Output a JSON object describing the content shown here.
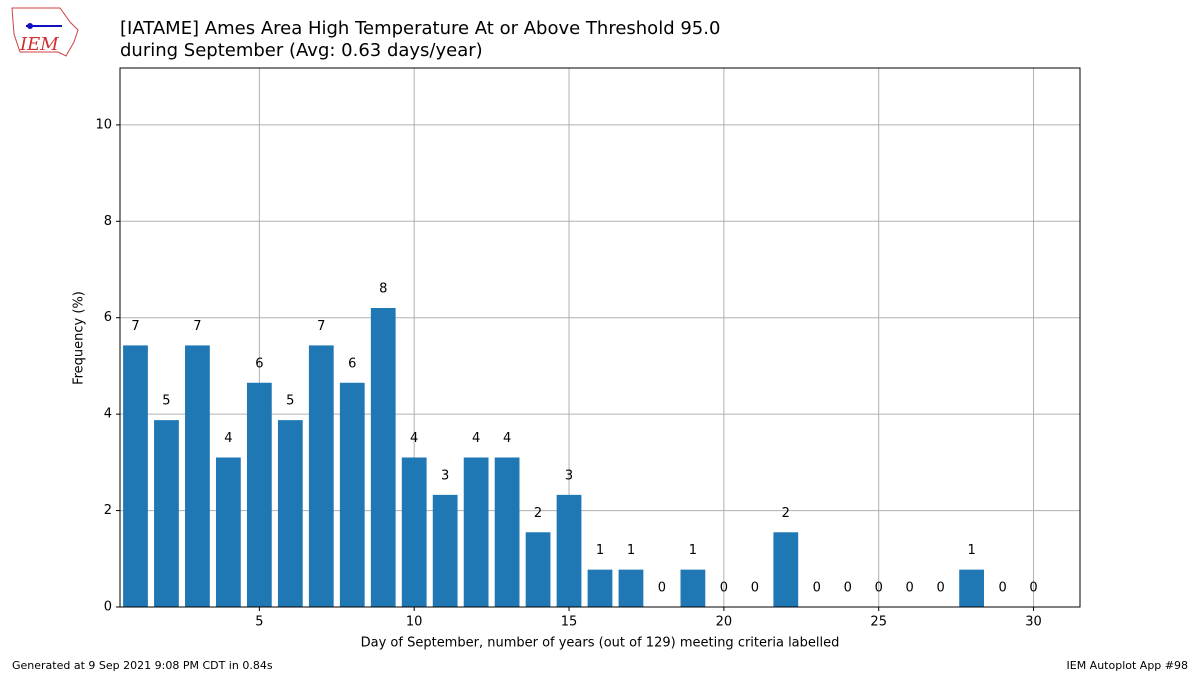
{
  "logo": "IEM",
  "footer_left": "Generated at 9 Sep 2021 9:08 PM CDT in 0.84s",
  "footer_right": "IEM Autoplot App #98",
  "chart_data": {
    "type": "bar",
    "title": "[IATAME] Ames Area High Temperature At or Above Threshold 95.0",
    "subtitle": "during September (Avg: 0.63 days/year)",
    "x_label": "Day of September, number of years (out of 129) meeting criteria labelled",
    "y_label": "Frequency (%)",
    "x": [
      1,
      2,
      3,
      4,
      5,
      6,
      7,
      8,
      9,
      10,
      11,
      12,
      13,
      14,
      15,
      16,
      17,
      18,
      19,
      20,
      21,
      22,
      23,
      24,
      25,
      26,
      27,
      28,
      29,
      30
    ],
    "values": [
      5.426,
      3.876,
      5.426,
      3.101,
      4.651,
      3.876,
      5.426,
      4.651,
      6.202,
      3.101,
      2.326,
      3.101,
      3.101,
      1.55,
      2.326,
      0.775,
      0.775,
      0,
      0.775,
      0,
      0,
      1.55,
      0,
      0,
      0,
      0,
      0,
      0.775,
      0,
      0
    ],
    "counts": [
      7,
      5,
      7,
      4,
      6,
      5,
      7,
      6,
      8,
      4,
      3,
      4,
      4,
      2,
      3,
      1,
      1,
      0,
      1,
      0,
      0,
      2,
      0,
      0,
      0,
      0,
      0,
      1,
      0,
      0
    ],
    "color": "#1f77b4",
    "xlim": [
      0.5,
      31.5
    ],
    "xticks": [
      5,
      10,
      15,
      20,
      25,
      30
    ],
    "ylim": [
      0,
      11.18
    ],
    "yticks": [
      0,
      2,
      4,
      6,
      8,
      10
    ],
    "grid": true
  }
}
